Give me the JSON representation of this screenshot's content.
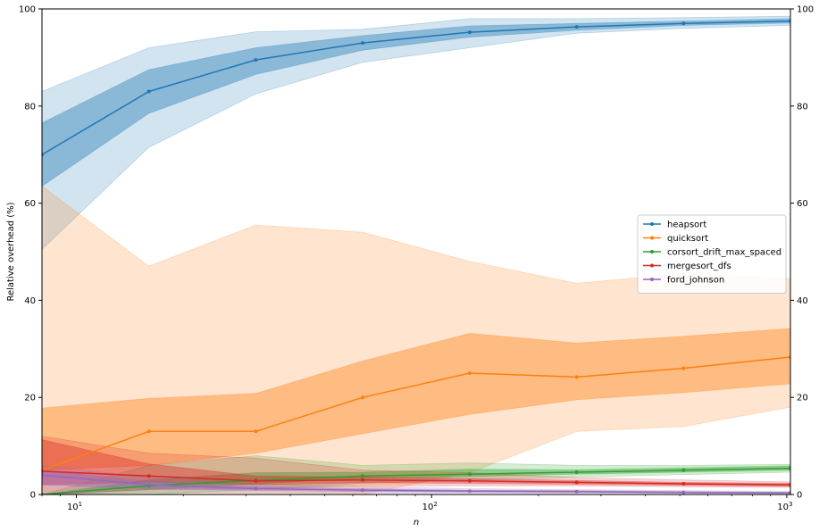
{
  "chart_data": {
    "type": "line",
    "xscale": "log",
    "xlim": [
      8,
      1024
    ],
    "ylim": [
      0,
      100
    ],
    "xlabel": "n",
    "ylabel": "Relative overhead (%)",
    "x_ticks": [
      {
        "value": 10,
        "label": "10",
        "exp": "1"
      },
      {
        "value": 100,
        "label": "10",
        "exp": "2"
      },
      {
        "value": 1000,
        "label": "10",
        "exp": "3"
      }
    ],
    "y_ticks": [
      0,
      20,
      40,
      60,
      80,
      100
    ],
    "y_tick_labels": [
      "0",
      "20",
      "40",
      "60",
      "80",
      "100"
    ],
    "legend_position": "center-right",
    "x": [
      8,
      16,
      32,
      64,
      128,
      256,
      512,
      1024
    ],
    "series": [
      {
        "name": "heapsort",
        "color": "#1f77b4",
        "values": [
          70,
          83,
          89.5,
          93,
          95.2,
          96.3,
          97,
          97.5
        ],
        "inner_low": [
          63.5,
          78.5,
          86.5,
          91.5,
          94.2,
          95.6,
          96.6,
          97.1
        ],
        "inner_high": [
          76.5,
          87.5,
          92,
          94.5,
          96.5,
          97,
          97.5,
          98
        ],
        "outer_low": [
          50.5,
          71.5,
          82.5,
          89,
          92,
          95,
          96,
          96.6
        ],
        "outer_high": [
          83,
          92,
          95.3,
          95.8,
          98,
          98,
          98.2,
          98.5
        ]
      },
      {
        "name": "quicksort",
        "color": "#ff7f0e",
        "values": [
          5,
          13,
          13,
          20,
          25,
          24.2,
          26,
          28.3
        ],
        "inner_low": [
          5,
          6,
          8.5,
          12.5,
          16.5,
          19.5,
          21,
          22.8
        ],
        "inner_high": [
          17.8,
          19.8,
          20.8,
          27.5,
          33.2,
          31.2,
          32.6,
          34.2
        ],
        "outer_low": [
          0,
          0,
          0,
          0,
          4.5,
          13,
          14,
          18
        ],
        "outer_high": [
          63.5,
          47,
          55.5,
          54,
          48,
          43.5,
          45.5,
          44.5
        ]
      },
      {
        "name": "corsort_drift_max_spaced",
        "color": "#2ca02c",
        "values": [
          0,
          1.8,
          2.9,
          3.8,
          4.2,
          4.6,
          5,
          5.4
        ],
        "inner_low": [
          0,
          1,
          2.2,
          3.3,
          3.7,
          4.2,
          4.6,
          5
        ],
        "inner_high": [
          0,
          3,
          4.5,
          4.6,
          5.2,
          5.1,
          5.5,
          5.9
        ],
        "outer_low": [
          0,
          0,
          1,
          2.3,
          3,
          3.6,
          4.1,
          4.6
        ],
        "outer_high": [
          0,
          6,
          8,
          6,
          6.5,
          6,
          6,
          6.2
        ]
      },
      {
        "name": "mergesort_dfs",
        "color": "#d62728",
        "values": [
          4.8,
          3.8,
          2.8,
          3,
          2.8,
          2.5,
          2.2,
          2
        ],
        "inner_low": [
          2,
          2.5,
          2,
          2.4,
          2.3,
          2.1,
          1.9,
          1.7
        ],
        "inner_high": [
          11.3,
          6.3,
          3.8,
          3.6,
          3.3,
          2.9,
          2.5,
          2.3
        ],
        "outer_low": [
          0,
          1,
          1.2,
          1.8,
          1.8,
          1.8,
          1.6,
          1.5
        ],
        "outer_high": [
          12,
          8.5,
          7.5,
          5,
          4.5,
          3.5,
          3,
          2.6
        ]
      },
      {
        "name": "ford_johnson",
        "color": "#9467bd",
        "values": [
          4,
          2,
          1.2,
          0.9,
          0.7,
          0.6,
          0.45,
          0.35
        ],
        "inner_low": [
          2,
          1.2,
          0.8,
          0.6,
          0.5,
          0.4,
          0.3,
          0.25
        ],
        "inner_high": [
          5,
          2.7,
          1.6,
          1.2,
          0.9,
          0.8,
          0.6,
          0.45
        ],
        "outer_low": [
          0,
          0.5,
          0.4,
          0.3,
          0.3,
          0.25,
          0.2,
          0.15
        ],
        "outer_high": [
          6,
          3.5,
          2.2,
          1.6,
          1.2,
          1,
          0.8,
          0.6
        ]
      }
    ]
  }
}
